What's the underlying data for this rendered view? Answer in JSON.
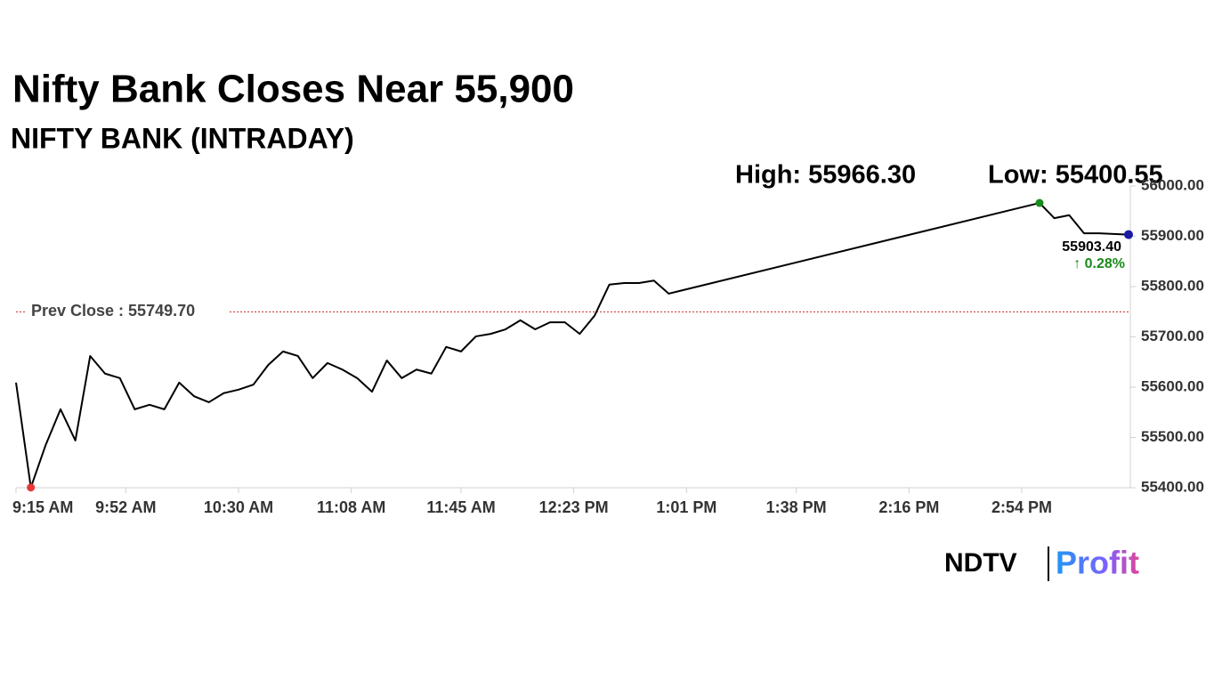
{
  "chart_data": {
    "type": "line",
    "title": "Nifty Bank Closes Near 55,900",
    "subtitle": "NIFTY BANK (INTRADAY)",
    "high_label": "High: 55966.30",
    "low_label": "Low: 55400.55",
    "high_index": 45,
    "low_index": 1,
    "prev_close": 55749.7,
    "prev_close_label": "Prev Close : 55749.70",
    "last_value": 55903.4,
    "last_value_label": "55903.40",
    "change": 0.28,
    "change_label": "↑ 0.28%",
    "x": [
      "9:15 AM",
      "9:20 AM",
      "9:25 AM",
      "9:30 AM",
      "9:35 AM",
      "9:40 AM",
      "9:45 AM",
      "9:50 AM",
      "9:55 AM",
      "10:00 AM",
      "10:05 AM",
      "10:10 AM",
      "10:15 AM",
      "10:20 AM",
      "10:25 AM",
      "10:30 AM",
      "10:35 AM",
      "10:40 AM",
      "10:45 AM",
      "10:50 AM",
      "10:55 AM",
      "11:00 AM",
      "11:05 AM",
      "11:10 AM",
      "11:15 AM",
      "11:20 AM",
      "11:25 AM",
      "11:30 AM",
      "11:35 AM",
      "11:40 AM",
      "11:45 AM",
      "11:50 AM",
      "11:55 AM",
      "12:00 PM",
      "12:05 PM",
      "12:10 PM",
      "12:15 PM",
      "12:20 PM",
      "12:25 PM",
      "12:30 PM",
      "12:35 PM",
      "12:40 PM",
      "12:45 PM",
      "12:50 PM",
      "12:55 PM",
      "3:00 PM",
      "3:05 PM",
      "3:10 PM",
      "3:15 PM",
      "3:20 PM",
      "3:30 PM"
    ],
    "series": [
      {
        "name": "NIFTY BANK",
        "color": "#000000",
        "values": [
          55609,
          55400.55,
          55485,
          55556,
          55494,
          55662,
          55627,
          55618,
          55556,
          55565,
          55556,
          55609,
          55582,
          55570,
          55588,
          55595,
          55605,
          55644,
          55671,
          55662,
          55618,
          55648,
          55635,
          55618,
          55591,
          55653,
          55618,
          55635,
          55627,
          55680,
          55671,
          55701,
          55706,
          55715,
          55733,
          55715,
          55729,
          55729,
          55706,
          55742,
          55804,
          55807,
          55807,
          55812,
          55786,
          55966.3,
          55936,
          55942,
          55906,
          55906,
          55903.4
        ]
      }
    ],
    "xlim": [
      "9:15 AM",
      "3:30 PM"
    ],
    "xticks": [
      "9:15 AM",
      "9:52 AM",
      "10:30 AM",
      "11:08 AM",
      "11:45 AM",
      "12:23 PM",
      "1:01 PM",
      "1:38 PM",
      "2:16 PM",
      "2:54 PM"
    ],
    "ylim": [
      55400,
      56000
    ],
    "yticks": [
      {
        "value": 55400,
        "label": "55400.00"
      },
      {
        "value": 55500,
        "label": "55500.00"
      },
      {
        "value": 55600,
        "label": "55600.00"
      },
      {
        "value": 55700,
        "label": "55700.00"
      },
      {
        "value": 55800,
        "label": "55800.00"
      },
      {
        "value": 55900,
        "label": "55900.00"
      },
      {
        "value": 56000,
        "label": "56000.00"
      }
    ],
    "grid": false
  },
  "brand": {
    "name": "NDTV",
    "product": "Profit"
  }
}
